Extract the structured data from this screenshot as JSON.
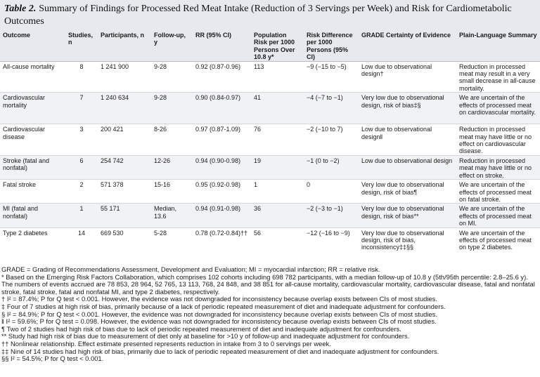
{
  "title": {
    "label": "Table 2.",
    "text": "Summary of Findings for Processed Red Meat Intake (Reduction of 3 Servings per Week) and Risk for Cardiometabolic Outcomes"
  },
  "columns": [
    "Outcome",
    "Studies, n",
    "Participants, n",
    "Follow-up, y",
    "RR (95% CI)",
    "Population Risk per 1000 Persons Over 10.8 y*",
    "Risk Difference per 1000 Persons (95% CI)",
    "GRADE Certainty of Evidence",
    "Plain-Language Summary"
  ],
  "rows": [
    {
      "outcome": "All-cause mortality",
      "studies": "8",
      "participants": "1 241 900",
      "followup": "9-28",
      "rr": "0.92 (0.87-0.96)",
      "risk": "113",
      "diff": "−9 (−15 to −5)",
      "grade": "Low due to observational design†",
      "summary": "Reduction in processed meat may result in a very small decrease in all-cause mortality."
    },
    {
      "outcome": "Cardiovascular mortality",
      "studies": "7",
      "participants": "1 240 634",
      "followup": "9-28",
      "rr": "0.90 (0.84-0.97)",
      "risk": "41",
      "diff": "−4 (−7 to −1)",
      "grade": "Very low due to observational design, risk of bias‡§",
      "summary": "We are uncertain of the effects of processed meat on cardiovascular mortality."
    },
    {
      "outcome": "Cardiovascular disease",
      "studies": "3",
      "participants": "200 421",
      "followup": "8-26",
      "rr": "0.97 (0.87-1.09)",
      "risk": "76",
      "diff": "−2 (−10 to 7)",
      "grade": "Low due to observational design‖",
      "summary": "Reduction in processed meat may have little or no effect on cardiovascular disease."
    },
    {
      "outcome": "Stroke (fatal and nonfatal)",
      "studies": "6",
      "participants": "254 742",
      "followup": "12-26",
      "rr": "0.94 (0.90-0.98)",
      "risk": "19",
      "diff": "−1 (0 to −2)",
      "grade": "Low due to observational design",
      "summary": "Reduction in processed meat may have little or no effect on stroke."
    },
    {
      "outcome": "Fatal stroke",
      "studies": "2",
      "participants": "571 378",
      "followup": "15-16",
      "rr": "0.95 (0.92-0.98)",
      "risk": "1",
      "diff": "0",
      "grade": "Very low due to observational design, risk of bias¶",
      "summary": "We are uncertain of the effects of processed meat on fatal stroke."
    },
    {
      "outcome": "MI (fatal and nonfatal)",
      "studies": "1",
      "participants": "55 171",
      "followup": "Median, 13.6",
      "rr": "0.94 (0.91-0.98)",
      "risk": "36",
      "diff": "−2 (−3 to −1)",
      "grade": "Very low due to observational design, risk of bias**",
      "summary": "We are uncertain of the effects of processed meat on MI."
    },
    {
      "outcome": "Type 2 diabetes",
      "studies": "14",
      "participants": "669 530",
      "followup": "5-28",
      "rr": "0.78 (0.72-0.84)††",
      "risk": "56",
      "diff": "−12 (−16 to −9)",
      "grade": "Very low due to observational design, risk of bias, inconsistency‡‡§§",
      "summary": "We are uncertain of the effects of processed meat on type 2 diabetes."
    }
  ],
  "footnotes": {
    "abbrev": "GRADE = Grading of Recommendations Assessment, Development and Evaluation; MI = myocardial infarction; RR = relative risk.",
    "star": "* Based on the Emerging Risk Factors Collaboration, which comprises 102 cohorts including 698 782 participants, with a median follow-up of 10.8 y (5th/95th percentile: 2.8–25.6 y). The numbers of events accrued are 78 853, 28 964, 52 765, 13 113, 768, 24 848, and 38 851 for all-cause mortality, cardiovascular mortality, cardiovascular disease, fatal and nonfatal stroke, fatal stroke, fatal and nonfatal MI, and type 2 diabetes, respectively.",
    "dagger": "† I² = 87.4%; P for Q test < 0.001. However, the evidence was not downgraded for inconsistency because overlap exists between CIs of most studies.",
    "ddagger": "‡ Four of 7 studies at high risk of bias, primarily because of a lack of periodic repeated measurement of diet and inadequate adjustment for confounders.",
    "section": "§ I² = 84.9%; P for Q test < 0.001. However, the evidence was not downgraded for inconsistency because overlap exists between CIs of most studies.",
    "parallel": "‖ I² = 59.6%; P for Q test = 0.098. However, the evidence was not downgraded for inconsistency because overlap exists between CIs of most studies.",
    "pilcrow": "¶ Two of 2 studies had high risk of bias due to lack of periodic repeated measurement of diet and inadequate adjustment for confounders.",
    "dstar": "** Study had high risk of bias due to measurement of diet only at baseline for >10 y of follow-up and inadequate adjustment for confounders.",
    "ddag": "†† Nonlinear relationship. Effect estimate presented represents reduction in intake from 3 to 0 servings per week.",
    "dddag": "‡‡ Nine of 14 studies had high risk of bias, primarily due to lack of periodic repeated measurement of diet and inadequate adjustment for confounders.",
    "dsection": "§§ I² = 54.5%; P for Q test < 0.001."
  }
}
